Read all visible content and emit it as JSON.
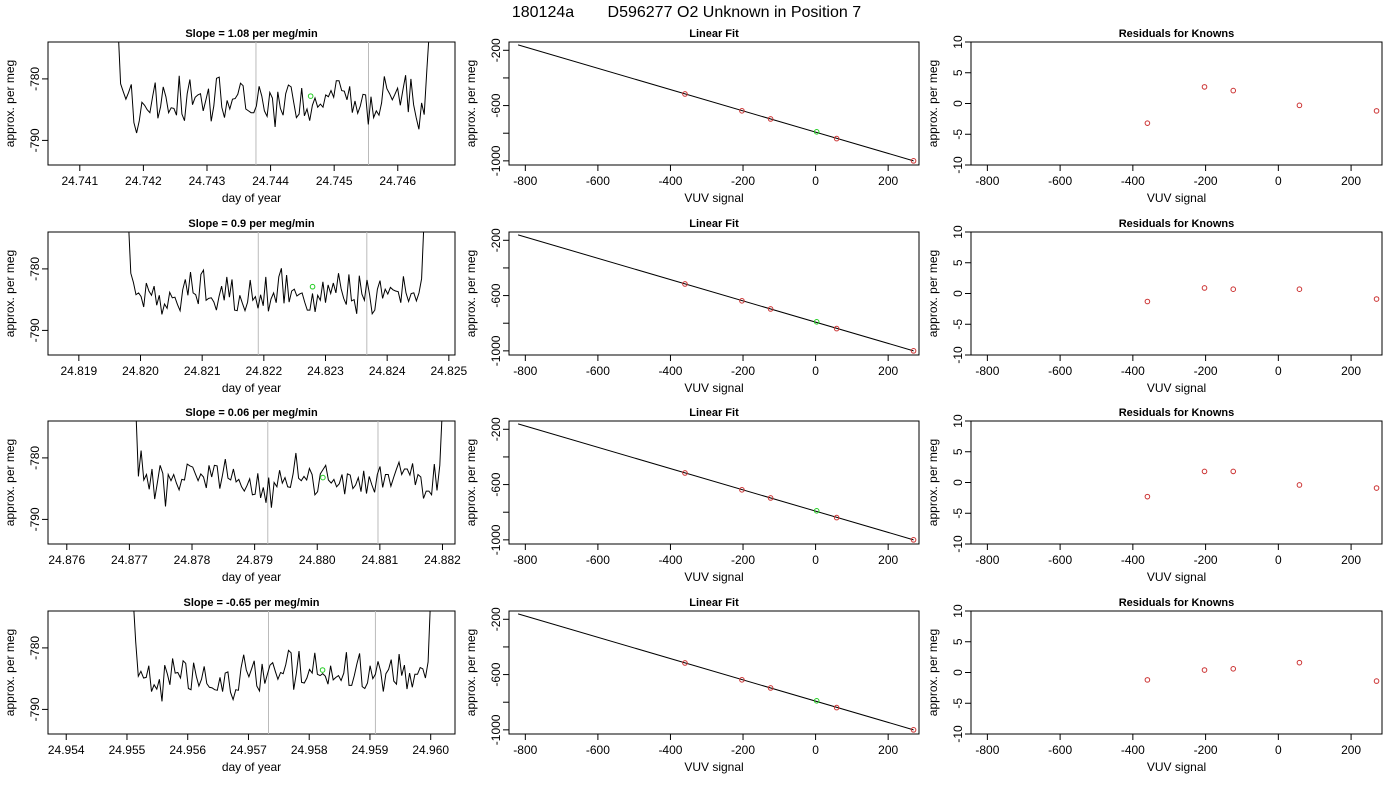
{
  "figure": {
    "run_id": "180124a",
    "sample_id": "D596277",
    "sample_desc": "O2 Unknown in Position  7"
  },
  "chart_data": [
    {
      "type": "line",
      "row": 1,
      "panel": "trace",
      "title": "Slope =  1.08  per meg/min",
      "xlabel": "day of year",
      "ylabel": "approx. per meg",
      "x_ticks": [
        "24.741",
        "24.742",
        "24.743",
        "24.744",
        "24.745",
        "24.746"
      ],
      "y_ticks": [
        "-780",
        "-790"
      ],
      "xlim": [
        24.7405,
        24.7469
      ],
      "ylim": [
        -794,
        -774
      ],
      "trace_start": 24.7416,
      "trace_end": 24.7465,
      "trace_level": -783,
      "vlines": [
        24.74377,
        24.74554
      ],
      "unknown_point": {
        "x": 24.74463,
        "y": -782.8
      },
      "trace_y": [
        -771.5,
        -780.8,
        -782.1,
        -783.3,
        -782.2,
        -780.9,
        -787.1,
        -788.8,
        -786.8,
        -783.8,
        -784.3,
        -785,
        -785.5,
        -782.9,
        -780.6,
        -786.4,
        -784.5,
        -781.3,
        -782.9,
        -785.5,
        -784.7,
        -784.8,
        -785.9,
        -779.5,
        -785.7,
        -786.8,
        -782.4,
        -780.1,
        -784.2,
        -783,
        -782.6,
        -782.4,
        -785.2,
        -783.5,
        -781.6,
        -786.9,
        -784.4,
        -779.9,
        -779.7,
        -784.6,
        -786.3,
        -783.5,
        -784.9,
        -783.3,
        -783.2,
        -782.5,
        -780.7,
        -781.1,
        -784.9,
        -785.2,
        -785.5,
        -785.5,
        -784.4,
        -781.2,
        -782.8,
        -785.2,
        -786.1,
        -782.2,
        -783.1,
        -787.8,
        -782.1,
        -784.8,
        -785.9,
        -782.4,
        -781,
        -781.3,
        -783.8,
        -786.3,
        -785.7,
        -781.5,
        -786,
        -784.9,
        -786.8,
        -784.3,
        -783.1,
        -784.6,
        -784.1,
        -784.6,
        -782.6,
        -782.9,
        -781.9,
        -783,
        -780.3,
        -780.3,
        -781.9,
        -782,
        -783.4,
        -781.2,
        -785.5,
        -783.6,
        -785.6,
        -784.4,
        -782.5,
        -782.6,
        -787.4,
        -782.9,
        -786.3,
        -785.2,
        -785.9,
        -783.9,
        -779.6,
        -781.6,
        -782.4,
        -783.4,
        -782.5,
        -781.5,
        -784.3,
        -781.8,
        -779.4,
        -785.4,
        -780,
        -784.2,
        -786.3,
        -788.2,
        -783.9,
        -785.8,
        -778.4,
        -771.5
      ]
    },
    {
      "type": "line",
      "row": 1,
      "panel": "fit",
      "title": "Linear Fit",
      "xlabel": "VUV signal",
      "ylabel": "approx. per meg",
      "x_ticks": [
        "-800",
        "-600",
        "-400",
        "-200",
        "0",
        "200"
      ],
      "y_ticks": [
        "-200",
        "-600",
        "-1000"
      ],
      "xlim": [
        -845,
        285
      ],
      "ylim": [
        -1030,
        -140
      ],
      "line": {
        "x": [
          -820,
          270
        ],
        "y": [
          -161,
          -1000
        ]
      },
      "knowns": [
        {
          "x": -360,
          "y": -516
        },
        {
          "x": -203,
          "y": -638
        },
        {
          "x": -124,
          "y": -697
        },
        {
          "x": 58,
          "y": -839
        },
        {
          "x": 270,
          "y": -1000
        }
      ],
      "unknown_point": {
        "x": 3,
        "y": -790
      }
    },
    {
      "type": "scatter",
      "row": 1,
      "panel": "residuals",
      "title": "Residuals for Knowns",
      "xlabel": "VUV signal",
      "ylabel": "approx. per meg",
      "x_ticks": [
        "-800",
        "-600",
        "-400",
        "-200",
        "0",
        "200"
      ],
      "y_ticks": [
        "-10",
        "-5",
        "0",
        "5",
        "10"
      ],
      "xlim": [
        -845,
        285
      ],
      "ylim": [
        -10,
        10
      ],
      "points": {
        "x": [
          -360,
          -203,
          -124,
          58,
          270
        ],
        "y": [
          -3.2,
          2.7,
          2.1,
          -0.3,
          -1.2
        ]
      }
    },
    {
      "type": "line",
      "row": 2,
      "panel": "trace",
      "title": "Slope =  0.9  per meg/min",
      "xlabel": "day of year",
      "ylabel": "approx. per meg",
      "x_ticks": [
        "24.819",
        "24.820",
        "24.821",
        "24.822",
        "24.823",
        "24.824",
        "24.825"
      ],
      "y_ticks": [
        "-780",
        "-790"
      ],
      "xlim": [
        24.8185,
        24.8251
      ],
      "ylim": [
        -794,
        -774
      ],
      "trace_start": 24.8198,
      "trace_end": 24.8246,
      "trace_level": -784,
      "vlines": [
        24.82191,
        24.82367
      ],
      "unknown_point": {
        "x": 24.82279,
        "y": -782.9
      },
      "trace_y": [
        -771.5,
        -780.7,
        -782.2,
        -784.2,
        -783.9,
        -784.5,
        -786.2,
        -782.3,
        -783.6,
        -784.3,
        -782.8,
        -785.9,
        -784.3,
        -787.4,
        -785.7,
        -786.4,
        -783.8,
        -784.7,
        -784.6,
        -785.8,
        -786.8,
        -783.4,
        -781.7,
        -784.3,
        -780.5,
        -783.9,
        -784.2,
        -785.7,
        -780.9,
        -780.2,
        -785.1,
        -784.8,
        -784.7,
        -785.4,
        -786.7,
        -784.5,
        -782.8,
        -785.1,
        -781.3,
        -784.6,
        -781.7,
        -786.7,
        -786.8,
        -784.3,
        -785.6,
        -786.8,
        -785.4,
        -781.8,
        -785.1,
        -784.5,
        -786.4,
        -784.2,
        -786,
        -781.3,
        -786.9,
        -784.9,
        -783.9,
        -785.5,
        -781.3,
        -779.9,
        -785.6,
        -781,
        -785.4,
        -783.6,
        -783.3,
        -784.4,
        -784.1,
        -783.9,
        -785.4,
        -786.7,
        -786.7,
        -784,
        -787,
        -784.3,
        -785.1,
        -782.1,
        -785.5,
        -782.6,
        -784,
        -782.3,
        -783.9,
        -780.7,
        -783.2,
        -784.8,
        -785.8,
        -780.9,
        -785.2,
        -785,
        -787.3,
        -781.1,
        -784.1,
        -785.1,
        -781.8,
        -784.2,
        -787.3,
        -786.7,
        -783.3,
        -781.9,
        -784.8,
        -783.3,
        -784.1,
        -783,
        -783.4,
        -783.6,
        -783.7,
        -785.5,
        -781.2,
        -783.9,
        -785.3,
        -784,
        -783.9,
        -785.2,
        -783.9,
        -781.6,
        -771.5
      ]
    },
    {
      "type": "line",
      "row": 2,
      "panel": "fit",
      "title": "Linear Fit",
      "xlabel": "VUV signal",
      "ylabel": "approx. per meg",
      "x_ticks": [
        "-800",
        "-600",
        "-400",
        "-200",
        "0",
        "200"
      ],
      "y_ticks": [
        "-200",
        "-600",
        "-1000"
      ],
      "xlim": [
        -845,
        285
      ],
      "ylim": [
        -1030,
        -140
      ],
      "line": {
        "x": [
          -820,
          270
        ],
        "y": [
          -161,
          -1000
        ]
      },
      "knowns": [
        {
          "x": -360,
          "y": -516
        },
        {
          "x": -203,
          "y": -638
        },
        {
          "x": -124,
          "y": -697
        },
        {
          "x": 58,
          "y": -839
        },
        {
          "x": 270,
          "y": -1000
        }
      ],
      "unknown_point": {
        "x": 3,
        "y": -790
      }
    },
    {
      "type": "scatter",
      "row": 2,
      "panel": "residuals",
      "title": "Residuals for Knowns",
      "xlabel": "VUV signal",
      "ylabel": "approx. per meg",
      "x_ticks": [
        "-800",
        "-600",
        "-400",
        "-200",
        "0",
        "200"
      ],
      "y_ticks": [
        "-10",
        "-5",
        "0",
        "5",
        "10"
      ],
      "xlim": [
        -845,
        285
      ],
      "ylim": [
        -10,
        10
      ],
      "points": {
        "x": [
          -360,
          -203,
          -124,
          58,
          270
        ],
        "y": [
          -1.3,
          0.9,
          0.7,
          0.7,
          -0.9
        ]
      }
    },
    {
      "type": "line",
      "row": 3,
      "panel": "trace",
      "title": "Slope =  0.06  per meg/min",
      "xlabel": "day of year",
      "ylabel": "approx. per meg",
      "x_ticks": [
        "24.876",
        "24.877",
        "24.878",
        "24.879",
        "24.880",
        "24.881",
        "24.882"
      ],
      "y_ticks": [
        "-780",
        "-790"
      ],
      "xlim": [
        24.8757,
        24.8822
      ],
      "ylim": [
        -794,
        -774
      ],
      "trace_start": 24.8771,
      "trace_end": 24.882,
      "trace_level": -784,
      "vlines": [
        24.87921,
        24.88097
      ],
      "unknown_point": {
        "x": 24.88009,
        "y": -783.2
      },
      "trace_y": [
        -771.5,
        -783,
        -778.8,
        -783.6,
        -782.7,
        -785.1,
        -781.8,
        -786.7,
        -784,
        -781.2,
        -782.5,
        -787.9,
        -782.7,
        -783.7,
        -782.7,
        -784.1,
        -785.2,
        -783.5,
        -783.6,
        -781,
        -781.3,
        -781.5,
        -782.6,
        -783.7,
        -782.6,
        -783.1,
        -784.9,
        -781.2,
        -783.1,
        -781.2,
        -781.3,
        -785,
        -782.8,
        -780.2,
        -783.3,
        -783.6,
        -781.8,
        -783.9,
        -783.5,
        -784.7,
        -785.4,
        -784.5,
        -783.4,
        -786,
        -785.9,
        -782.5,
        -786.5,
        -784.8,
        -787.3,
        -783.2,
        -788.1,
        -784,
        -784.7,
        -782,
        -784.1,
        -783.2,
        -784.7,
        -784.8,
        -782.6,
        -779.2,
        -783.3,
        -783.7,
        -783,
        -783.6,
        -781.7,
        -782.7,
        -786,
        -785.5,
        -782.6,
        -781.9,
        -781.2,
        -783.6,
        -784.1,
        -783.5,
        -784.7,
        -784.2,
        -782.7,
        -785.9,
        -782.6,
        -782.8,
        -785,
        -784.4,
        -783.2,
        -785.5,
        -782.1,
        -785.8,
        -783,
        -784.4,
        -785.6,
        -782.7,
        -781.4,
        -784.8,
        -782.7,
        -782.7,
        -784.6,
        -783.2,
        -781.9,
        -780.7,
        -782.7,
        -781.8,
        -781.8,
        -782.8,
        -780.9,
        -784.4,
        -782.7,
        -783.1,
        -786.6,
        -785.4,
        -785.4,
        -786,
        -781,
        -785.3,
        -781.2,
        -771.5
      ]
    },
    {
      "type": "line",
      "row": 3,
      "panel": "fit",
      "title": "Linear Fit",
      "xlabel": "VUV signal",
      "ylabel": "approx. per meg",
      "x_ticks": [
        "-800",
        "-600",
        "-400",
        "-200",
        "0",
        "200"
      ],
      "y_ticks": [
        "-200",
        "-600",
        "-1000"
      ],
      "xlim": [
        -845,
        285
      ],
      "ylim": [
        -1030,
        -140
      ],
      "line": {
        "x": [
          -820,
          270
        ],
        "y": [
          -161,
          -1000
        ]
      },
      "knowns": [
        {
          "x": -360,
          "y": -516
        },
        {
          "x": -203,
          "y": -638
        },
        {
          "x": -124,
          "y": -697
        },
        {
          "x": 58,
          "y": -839
        },
        {
          "x": 270,
          "y": -1000
        }
      ],
      "unknown_point": {
        "x": 3,
        "y": -790
      }
    },
    {
      "type": "scatter",
      "row": 3,
      "panel": "residuals",
      "title": "Residuals for Knowns",
      "xlabel": "VUV signal",
      "ylabel": "approx. per meg",
      "x_ticks": [
        "-800",
        "-600",
        "-400",
        "-200",
        "0",
        "200"
      ],
      "y_ticks": [
        "-10",
        "-5",
        "0",
        "5",
        "10"
      ],
      "xlim": [
        -845,
        285
      ],
      "ylim": [
        -10,
        10
      ],
      "points": {
        "x": [
          -360,
          -203,
          -124,
          58,
          270
        ],
        "y": [
          -2.3,
          1.8,
          1.8,
          -0.4,
          -0.9
        ]
      }
    },
    {
      "type": "line",
      "row": 4,
      "panel": "trace",
      "title": "Slope =  -0.65  per meg/min",
      "xlabel": "day of year",
      "ylabel": "approx. per meg",
      "x_ticks": [
        "24.954",
        "24.955",
        "24.956",
        "24.957",
        "24.958",
        "24.959",
        "24.960"
      ],
      "y_ticks": [
        "-780",
        "-790"
      ],
      "xlim": [
        24.9537,
        24.9604
      ],
      "ylim": [
        -794,
        -774
      ],
      "trace_start": 24.9551,
      "trace_end": 24.96,
      "trace_level": -784,
      "vlines": [
        24.95733,
        24.95909
      ],
      "unknown_point": {
        "x": 24.95822,
        "y": -783.6
      },
      "trace_y": [
        -771.5,
        -779,
        -784.6,
        -783.8,
        -784.9,
        -784.8,
        -782.9,
        -787.1,
        -786,
        -786.7,
        -785.1,
        -788.7,
        -782.8,
        -784.2,
        -786,
        -781.7,
        -784.1,
        -784,
        -784.9,
        -782.1,
        -782.5,
        -786.6,
        -786.8,
        -782.4,
        -784.6,
        -786.2,
        -785.1,
        -783,
        -785.8,
        -786.4,
        -786.5,
        -786.8,
        -786.9,
        -784.8,
        -787.1,
        -784.1,
        -783.9,
        -787.2,
        -788.4,
        -786.8,
        -786.9,
        -783.3,
        -781.1,
        -783.6,
        -784.7,
        -783.4,
        -782.1,
        -786.2,
        -787,
        -782.6,
        -785.8,
        -784.3,
        -782.8,
        -782.4,
        -783.8,
        -785.1,
        -784,
        -784.2,
        -782.7,
        -780.4,
        -780.8,
        -786.8,
        -784.1,
        -780.5,
        -785.6,
        -785.7,
        -784.9,
        -783.5,
        -784.1,
        -780.8,
        -784.3,
        -784.5,
        -784.2,
        -784.6,
        -785.9,
        -782.9,
        -785.2,
        -784.8,
        -784.5,
        -785.3,
        -784.1,
        -780.7,
        -786.1,
        -786.1,
        -784.5,
        -782.6,
        -780.9,
        -786.3,
        -786.6,
        -785.7,
        -782.9,
        -785,
        -784.3,
        -782.2,
        -783.8,
        -787.1,
        -784.2,
        -783.5,
        -781.9,
        -785.4,
        -785.9,
        -781,
        -784.5,
        -782.8,
        -786.7,
        -784.1,
        -786.4,
        -784.3,
        -784.3,
        -783.2,
        -783.4,
        -784.9,
        -782.3,
        -771.5
      ]
    },
    {
      "type": "line",
      "row": 4,
      "panel": "fit",
      "title": "Linear Fit",
      "xlabel": "VUV signal",
      "ylabel": "approx. per meg",
      "x_ticks": [
        "-800",
        "-600",
        "-400",
        "-200",
        "0",
        "200"
      ],
      "y_ticks": [
        "-200",
        "-600",
        "-1000"
      ],
      "xlim": [
        -845,
        285
      ],
      "ylim": [
        -1030,
        -140
      ],
      "line": {
        "x": [
          -820,
          270
        ],
        "y": [
          -161,
          -1000
        ]
      },
      "knowns": [
        {
          "x": -360,
          "y": -516
        },
        {
          "x": -203,
          "y": -638
        },
        {
          "x": -124,
          "y": -697
        },
        {
          "x": 58,
          "y": -839
        },
        {
          "x": 270,
          "y": -1000
        }
      ],
      "unknown_point": {
        "x": 3,
        "y": -790
      }
    },
    {
      "type": "scatter",
      "row": 4,
      "panel": "residuals",
      "title": "Residuals for Knowns",
      "xlabel": "VUV signal",
      "ylabel": "approx. per meg",
      "x_ticks": [
        "-800",
        "-600",
        "-400",
        "-200",
        "0",
        "200"
      ],
      "y_ticks": [
        "-10",
        "-5",
        "0",
        "5",
        "10"
      ],
      "xlim": [
        -845,
        285
      ],
      "ylim": [
        -10,
        10
      ],
      "points": {
        "x": [
          -360,
          -203,
          -124,
          58,
          270
        ],
        "y": [
          -1.2,
          0.4,
          0.6,
          1.6,
          -1.4
        ]
      }
    }
  ],
  "colors": {
    "trace": "#000000",
    "unknown": "#22cc22",
    "known": "#cc3333",
    "vline": "#bbbbbb",
    "fit_line": "#000000"
  }
}
